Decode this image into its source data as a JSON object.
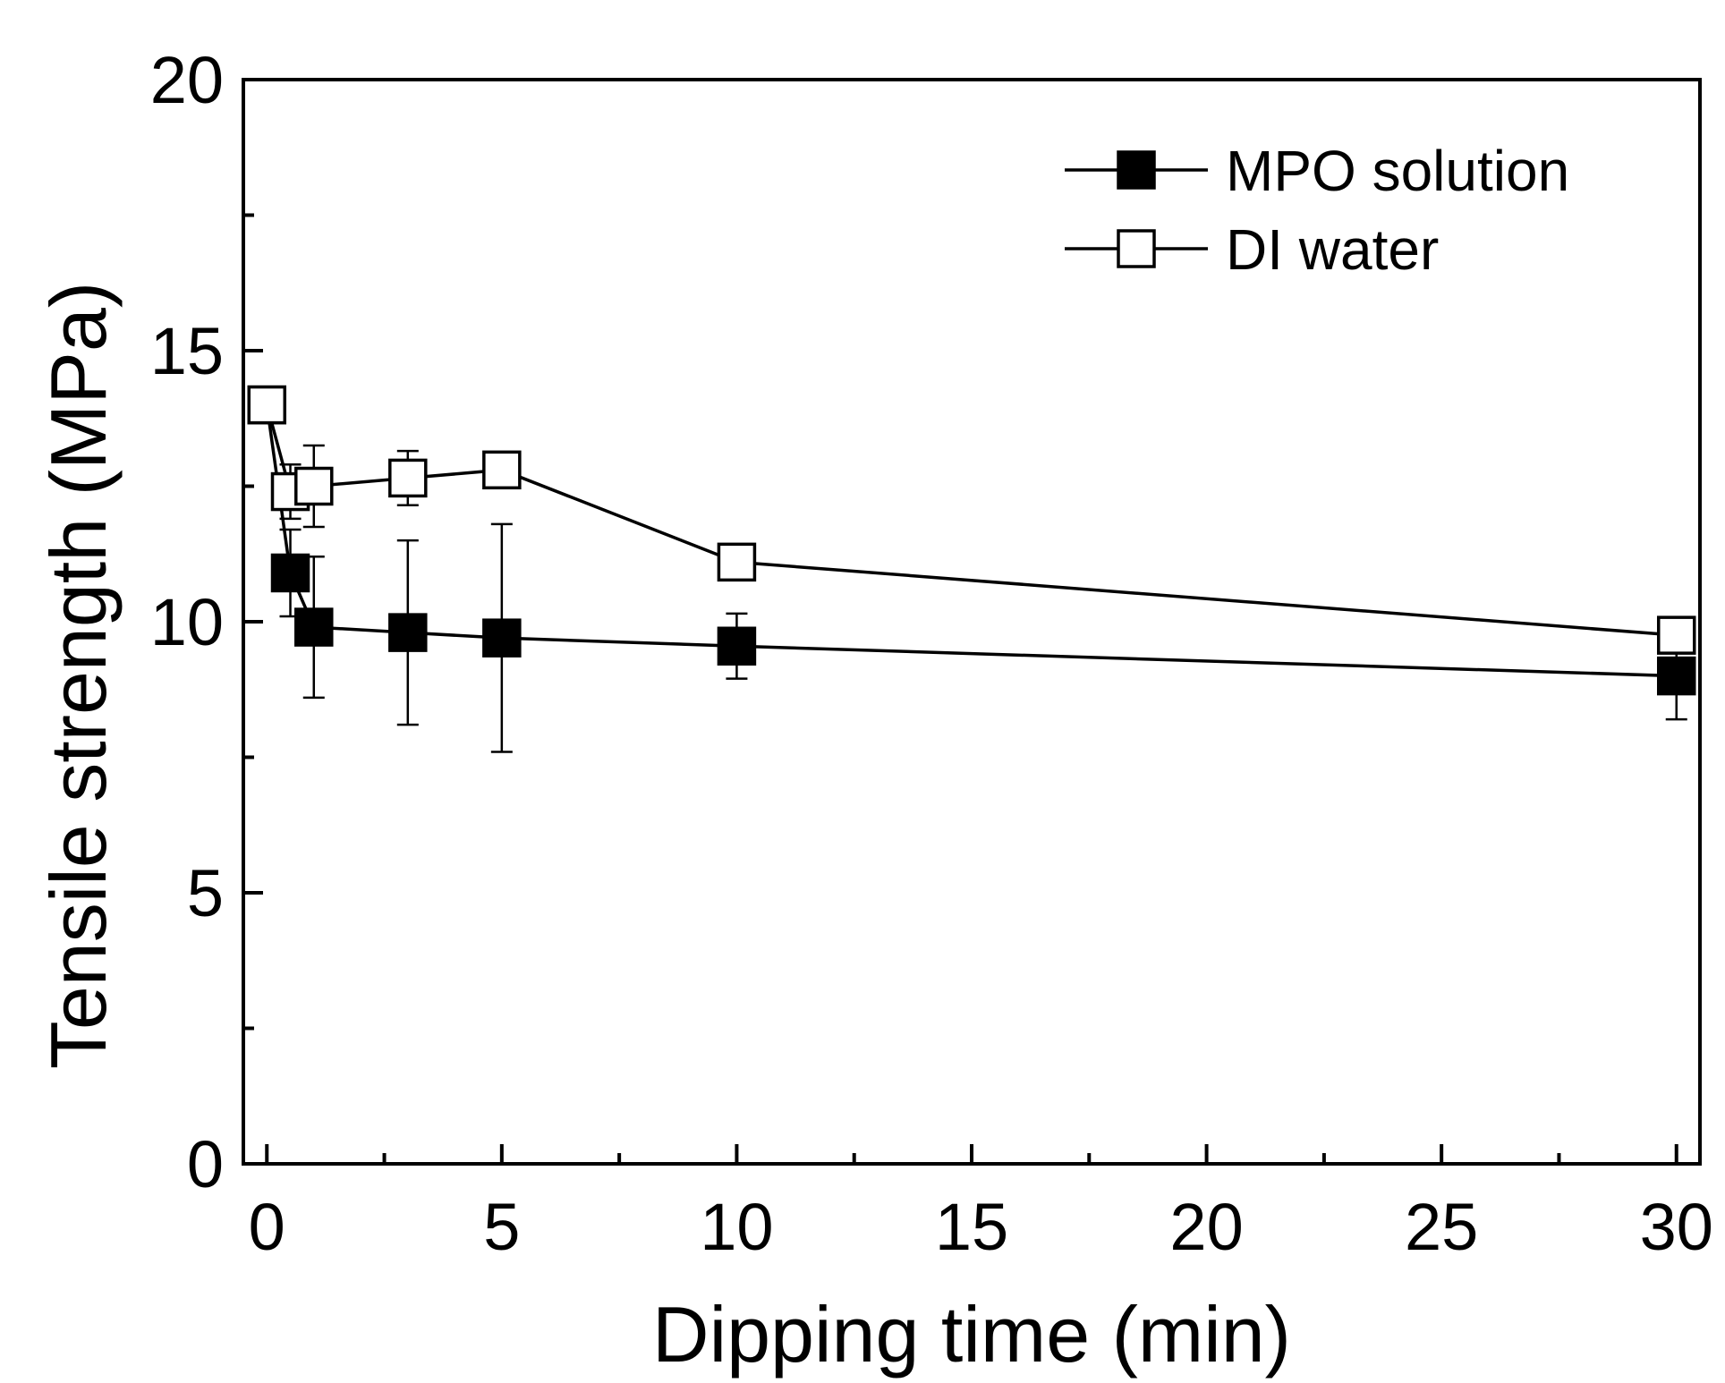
{
  "chart_data": {
    "type": "line",
    "xlabel": "Dipping time (min)",
    "ylabel": "Tensile strength (MPa)",
    "xlim": [
      -0.5,
      30.5
    ],
    "ylim": [
      0,
      20
    ],
    "xticks": [
      0,
      5,
      10,
      15,
      20,
      25,
      30
    ],
    "xtick_labels": [
      "0",
      "5",
      "10",
      "15",
      "20",
      "25",
      "30"
    ],
    "x_minor_ticks": [
      2.5,
      7.5,
      12.5,
      17.5,
      22.5,
      27.5
    ],
    "yticks": [
      0,
      5,
      10,
      15,
      20
    ],
    "ytick_labels": [
      "0",
      "5",
      "10",
      "15",
      "20"
    ],
    "y_minor_ticks": [
      2.5,
      7.5,
      12.5,
      17.5
    ],
    "grid": false,
    "legend_position": "top-right",
    "series": [
      {
        "name": "MPO solution",
        "marker": "filled-square",
        "color": "#000000",
        "x": [
          0,
          0.5,
          1,
          3,
          5,
          10,
          30
        ],
        "y": [
          14.0,
          10.9,
          9.9,
          9.8,
          9.7,
          9.55,
          9.0
        ],
        "err": [
          0.0,
          0.8,
          1.3,
          1.7,
          2.1,
          0.6,
          0.8
        ]
      },
      {
        "name": "DI water",
        "marker": "open-square",
        "color": "#000000",
        "x": [
          0,
          0.5,
          1,
          3,
          5,
          10,
          30
        ],
        "y": [
          14.0,
          12.4,
          12.5,
          12.65,
          12.8,
          11.1,
          9.75
        ],
        "err": [
          0.0,
          0.5,
          0.75,
          0.5,
          0.0,
          0.25,
          0.15
        ]
      }
    ]
  }
}
